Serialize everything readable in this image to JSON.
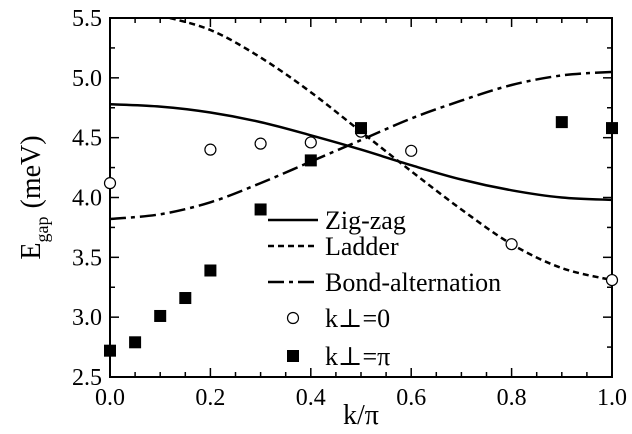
{
  "chart_data": {
    "type": "line",
    "title": "",
    "xlabel": "k/π",
    "ylabel": "E",
    "ylabel_sub": "gap",
    "ylabel_unit": "(meV)",
    "xlim": [
      0.0,
      1.0
    ],
    "ylim": [
      2.5,
      5.5
    ],
    "xticks": [
      "0.0",
      "0.2",
      "0.4",
      "0.6",
      "0.8",
      "1.0"
    ],
    "yticks": [
      "2.5",
      "3.0",
      "3.5",
      "4.0",
      "4.5",
      "5.0",
      "5.5"
    ],
    "grid": false,
    "legend_position": "bottom-right",
    "series": [
      {
        "name": "Zig-zag",
        "style": "solid",
        "x": [
          0.0,
          0.1,
          0.2,
          0.3,
          0.4,
          0.5,
          0.6,
          0.7,
          0.8,
          0.9,
          1.0
        ],
        "y": [
          4.78,
          4.76,
          4.71,
          4.63,
          4.52,
          4.4,
          4.27,
          4.15,
          4.06,
          4.0,
          3.98
        ]
      },
      {
        "name": "Ladder",
        "style": "dashed",
        "x": [
          0.1,
          0.2,
          0.3,
          0.4,
          0.5,
          0.6,
          0.7,
          0.8,
          0.9,
          1.0
        ],
        "y": [
          5.52,
          5.4,
          5.17,
          4.88,
          4.55,
          4.22,
          3.9,
          3.61,
          3.41,
          3.31
        ]
      },
      {
        "name": "Bond-alternation",
        "style": "dashdot",
        "x": [
          0.0,
          0.1,
          0.2,
          0.3,
          0.4,
          0.5,
          0.6,
          0.7,
          0.8,
          0.9,
          1.0
        ],
        "y": [
          3.82,
          3.86,
          3.96,
          4.12,
          4.3,
          4.48,
          4.66,
          4.81,
          4.94,
          5.02,
          5.05
        ]
      },
      {
        "name": "k⊥=0",
        "style": "open-circle",
        "x": [
          0.0,
          0.2,
          0.3,
          0.4,
          0.5,
          0.6,
          0.8,
          1.0
        ],
        "y": [
          4.12,
          4.4,
          4.45,
          4.46,
          4.55,
          4.39,
          3.61,
          3.31
        ]
      },
      {
        "name": "k⊥=π",
        "style": "filled-square",
        "x": [
          0.0,
          0.05,
          0.1,
          0.15,
          0.2,
          0.3,
          0.4,
          0.5,
          0.9,
          1.0
        ],
        "y": [
          2.72,
          2.79,
          3.01,
          3.16,
          3.39,
          3.9,
          4.31,
          4.58,
          4.63,
          4.58
        ]
      }
    ]
  }
}
